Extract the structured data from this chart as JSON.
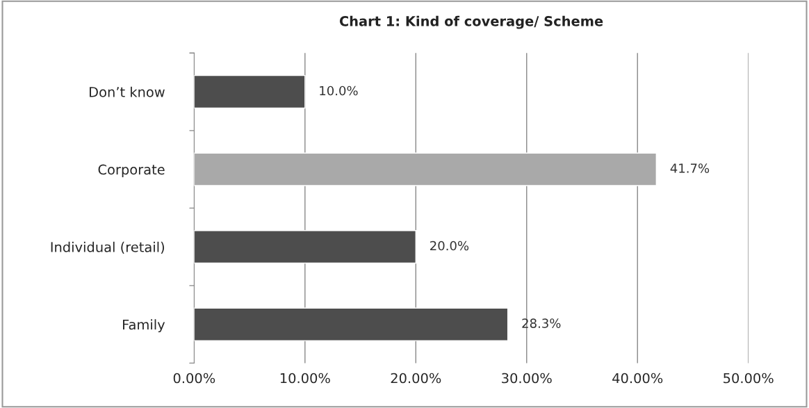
{
  "chart_data": {
    "type": "bar",
    "orientation": "horizontal",
    "title": "Chart 1: Kind of coverage/ Scheme",
    "categories": [
      "Don’t know",
      "Corporate",
      "Individual (retail)",
      "Family"
    ],
    "values": [
      10.0,
      41.7,
      20.0,
      28.3
    ],
    "colors": [
      "#4d4d4d",
      "#a9a9a9",
      "#4d4d4d",
      "#4d4d4d"
    ],
    "value_labels": [
      "10.0%",
      "41.7%",
      "20.0%",
      "28.3%"
    ],
    "xlim": [
      0,
      50
    ],
    "xticks": [
      {
        "value": 0,
        "label": "0.00%"
      },
      {
        "value": 10,
        "label": "10.00%"
      },
      {
        "value": 20,
        "label": "20.00%"
      },
      {
        "value": 30,
        "label": "30.00%"
      },
      {
        "value": 40,
        "label": "40.00%"
      },
      {
        "value": 50,
        "label": "50.00%"
      }
    ],
    "grid": "x"
  }
}
